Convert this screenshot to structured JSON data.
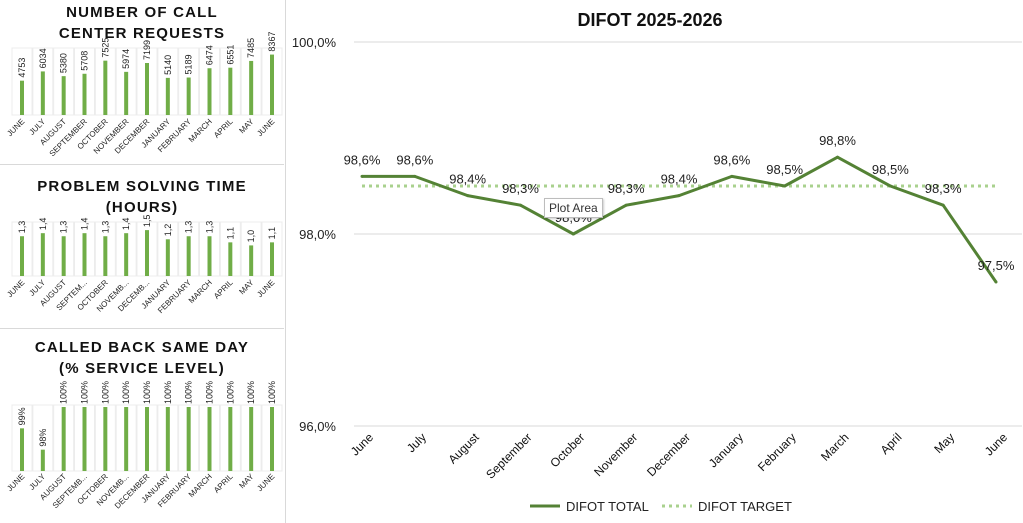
{
  "small_charts": [
    {
      "title_lines": [
        "NUMBER OF CALL",
        "CENTER REQUESTS"
      ],
      "chart_data": {
        "type": "bar",
        "categories": [
          "JUNE",
          "JULY",
          "AUGUST",
          "SEPTEMBER",
          "OCTOBER",
          "NOVEMBER",
          "DECEMBER",
          "JANUARY",
          "FEBRUARY",
          "MARCH",
          "APRIL",
          "MAY",
          "JUNE"
        ],
        "values": [
          4753,
          6034,
          5380,
          5708,
          7525,
          5974,
          7199,
          5140,
          5189,
          6474,
          6551,
          7485,
          8367
        ],
        "value_labels": [
          "4753",
          "6034",
          "5380",
          "5708",
          "7525",
          "5974",
          "7199",
          "5140",
          "5189",
          "6474",
          "6551",
          "7485",
          "8367"
        ],
        "ylim": [
          0,
          9000
        ]
      }
    },
    {
      "title_lines": [
        "PROBLEM SOLVING TIME",
        "(HOURS)"
      ],
      "chart_data": {
        "type": "bar",
        "categories": [
          "JUNE",
          "JULY",
          "AUGUST",
          "SEPTEM...",
          "OCTOBER",
          "NOVEMB...",
          "DECEMB...",
          "JANUARY",
          "FEBRUARY",
          "MARCH",
          "APRIL",
          "MAY",
          "JUNE"
        ],
        "values": [
          1.3,
          1.4,
          1.3,
          1.4,
          1.3,
          1.4,
          1.5,
          1.2,
          1.3,
          1.3,
          1.1,
          1.0,
          1.1
        ],
        "value_labels": [
          "1,3",
          "1,4",
          "1,3",
          "1,4",
          "1,3",
          "1,4",
          "1,5",
          "1,2",
          "1,3",
          "1,3",
          "1,1",
          "1,0",
          "1,1"
        ],
        "ylim": [
          0,
          1.7
        ]
      }
    },
    {
      "title_lines": [
        "CALLED BACK SAME DAY",
        "(% SERVICE LEVEL)"
      ],
      "chart_data": {
        "type": "bar",
        "categories": [
          "JUNE",
          "JULY",
          "AUGUST",
          "SEPTEMB...",
          "OCTOBER",
          "NOVEMB...",
          "DECEMBER",
          "JANUARY",
          "FEBRUARY",
          "MARCH",
          "APRIL",
          "MAY",
          "JUNE"
        ],
        "values": [
          99,
          98,
          100,
          100,
          100,
          100,
          100,
          100,
          100,
          100,
          100,
          100,
          100
        ],
        "value_labels": [
          "99%",
          "98%",
          "100%",
          "100%",
          "100%",
          "100%",
          "100%",
          "100%",
          "100%",
          "100%",
          "100%",
          "100%",
          "100%"
        ],
        "ylim": [
          97,
          100
        ]
      }
    }
  ],
  "chart_data": {
    "type": "line",
    "title": "DIFOT 2025-2026",
    "categories": [
      "June",
      "July",
      "August",
      "September",
      "October",
      "November",
      "December",
      "January",
      "February",
      "March",
      "April",
      "May",
      "June"
    ],
    "series": [
      {
        "name": "DIFOT TOTAL",
        "values": [
          98.6,
          98.6,
          98.4,
          98.3,
          98.0,
          98.3,
          98.4,
          98.6,
          98.5,
          98.8,
          98.5,
          98.3,
          97.5
        ],
        "labels": [
          "98,6%",
          "98,6%",
          "98,4%",
          "98,3%",
          "98,0%",
          "98,3%",
          "98,4%",
          "98,6%",
          "98,5%",
          "98,8%",
          "98,5%",
          "98,3%",
          "97,5%"
        ]
      },
      {
        "name": "DIFOT TARGET",
        "values": [
          98.5,
          98.5,
          98.5,
          98.5,
          98.5,
          98.5,
          98.5,
          98.5,
          98.5,
          98.5,
          98.5,
          98.5,
          98.5
        ]
      }
    ],
    "yticks": [
      96.0,
      98.0,
      100.0
    ],
    "ytick_labels": [
      "96,0%",
      "98,0%",
      "100,0%"
    ],
    "ylim": [
      96,
      100
    ],
    "grid": true,
    "legend": "bottom"
  },
  "tooltip": "Plot Area",
  "colors": {
    "bar": "#70ad47",
    "line": "#548235",
    "target": "#a9d18e",
    "grid": "#d9d9d9"
  }
}
